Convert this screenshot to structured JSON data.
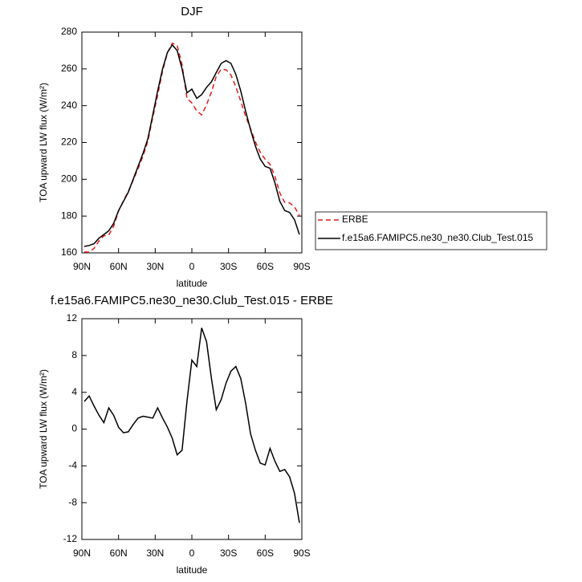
{
  "chart_data": [
    {
      "type": "line",
      "title": "DJF",
      "xlabel": "latitude",
      "ylabel": "TOA upward LW flux (W/m²)",
      "x": [
        88,
        84,
        80,
        76,
        72,
        68,
        64,
        60,
        56,
        52,
        48,
        44,
        40,
        36,
        32,
        28,
        24,
        20,
        16,
        12,
        8,
        4,
        0,
        -4,
        -8,
        -12,
        -16,
        -20,
        -24,
        -28,
        -32,
        -36,
        -40,
        -44,
        -48,
        -52,
        -56,
        -60,
        -64,
        -68,
        -72,
        -76,
        -80,
        -84,
        -88
      ],
      "series": [
        {
          "name": "ERBE",
          "color": "#e41a1c",
          "line_style": "dashed",
          "values": [
            160.5,
            160.4,
            162.5,
            166.5,
            169.3,
            169.7,
            174.5,
            182.8,
            188.4,
            193.3,
            199.5,
            205.8,
            212.6,
            220.7,
            233.8,
            245.7,
            258.8,
            268.8,
            274,
            272.8,
            262.3,
            244,
            241.5,
            237.2,
            235,
            240.5,
            247.5,
            255.9,
            259.8,
            259.5,
            256.7,
            250.2,
            242.5,
            234.2,
            227.5,
            220.3,
            214.7,
            210.9,
            208.1,
            201.5,
            192.6,
            187.4,
            187.2,
            185,
            180.2
          ]
        },
        {
          "name": "f.e15a6.FAMIPC5.ne30_ne30.Club_Test.015",
          "color": "#000000",
          "line_style": "solid",
          "values": [
            163.5,
            164,
            165,
            168,
            170,
            172,
            176,
            183,
            188,
            193,
            200,
            207,
            214,
            222,
            235,
            248,
            260,
            269,
            273,
            270,
            260,
            247,
            249,
            244,
            246,
            250,
            253,
            258,
            263,
            264.5,
            263,
            257,
            248,
            237,
            227,
            218,
            211,
            207,
            206,
            198,
            188,
            183,
            182,
            178,
            170
          ]
        }
      ],
      "xlim": [
        90,
        -90
      ],
      "xticks": [
        {
          "value": 90,
          "label": "90N"
        },
        {
          "value": 60,
          "label": "60N"
        },
        {
          "value": 30,
          "label": "30N"
        },
        0,
        {
          "value": -30,
          "label": "30S"
        },
        {
          "value": -60,
          "label": "60S"
        },
        {
          "value": -90,
          "label": "90S"
        }
      ],
      "ylim": [
        160,
        280
      ],
      "yticks": [
        160,
        180,
        200,
        220,
        240,
        260,
        280
      ],
      "legend": "right"
    },
    {
      "type": "line",
      "title": "f.e15a6.FAMIPC5.ne30_ne30.Club_Test.015 - ERBE",
      "xlabel": "latitude",
      "ylabel": "TOA upward LW flux (W/m²)",
      "x": [
        88,
        84,
        80,
        76,
        72,
        68,
        64,
        60,
        56,
        52,
        48,
        44,
        40,
        36,
        32,
        28,
        24,
        20,
        16,
        12,
        8,
        4,
        0,
        -4,
        -8,
        -12,
        -16,
        -20,
        -24,
        -28,
        -32,
        -36,
        -40,
        -44,
        -48,
        -52,
        -56,
        -60,
        -64,
        -68,
        -72,
        -76,
        -80,
        -84,
        -88
      ],
      "series": [
        {
          "color": "#000000",
          "line_style": "solid",
          "values": [
            3,
            3.6,
            2.5,
            1.5,
            0.7,
            2.3,
            1.5,
            0.2,
            -0.4,
            -0.3,
            0.5,
            1.2,
            1.4,
            1.3,
            1.2,
            2.3,
            1.2,
            0.2,
            -1,
            -2.8,
            -2.3,
            3,
            7.5,
            6.8,
            11,
            9.5,
            5.5,
            2.1,
            3.2,
            5,
            6.3,
            6.8,
            5.5,
            2.8,
            -0.5,
            -2.3,
            -3.7,
            -3.9,
            -2.1,
            -3.5,
            -4.6,
            -4.4,
            -5.2,
            -7,
            -10.2
          ]
        }
      ],
      "xlim": [
        90,
        -90
      ],
      "xticks": [
        {
          "value": 90,
          "label": "90N"
        },
        {
          "value": 60,
          "label": "60N"
        },
        {
          "value": 30,
          "label": "30N"
        },
        0,
        {
          "value": -30,
          "label": "30S"
        },
        {
          "value": -60,
          "label": "60S"
        },
        {
          "value": -90,
          "label": "90S"
        }
      ],
      "ylim": [
        -12,
        12
      ],
      "yticks": [
        -12,
        -8,
        -4,
        0,
        4,
        8,
        12
      ]
    }
  ]
}
